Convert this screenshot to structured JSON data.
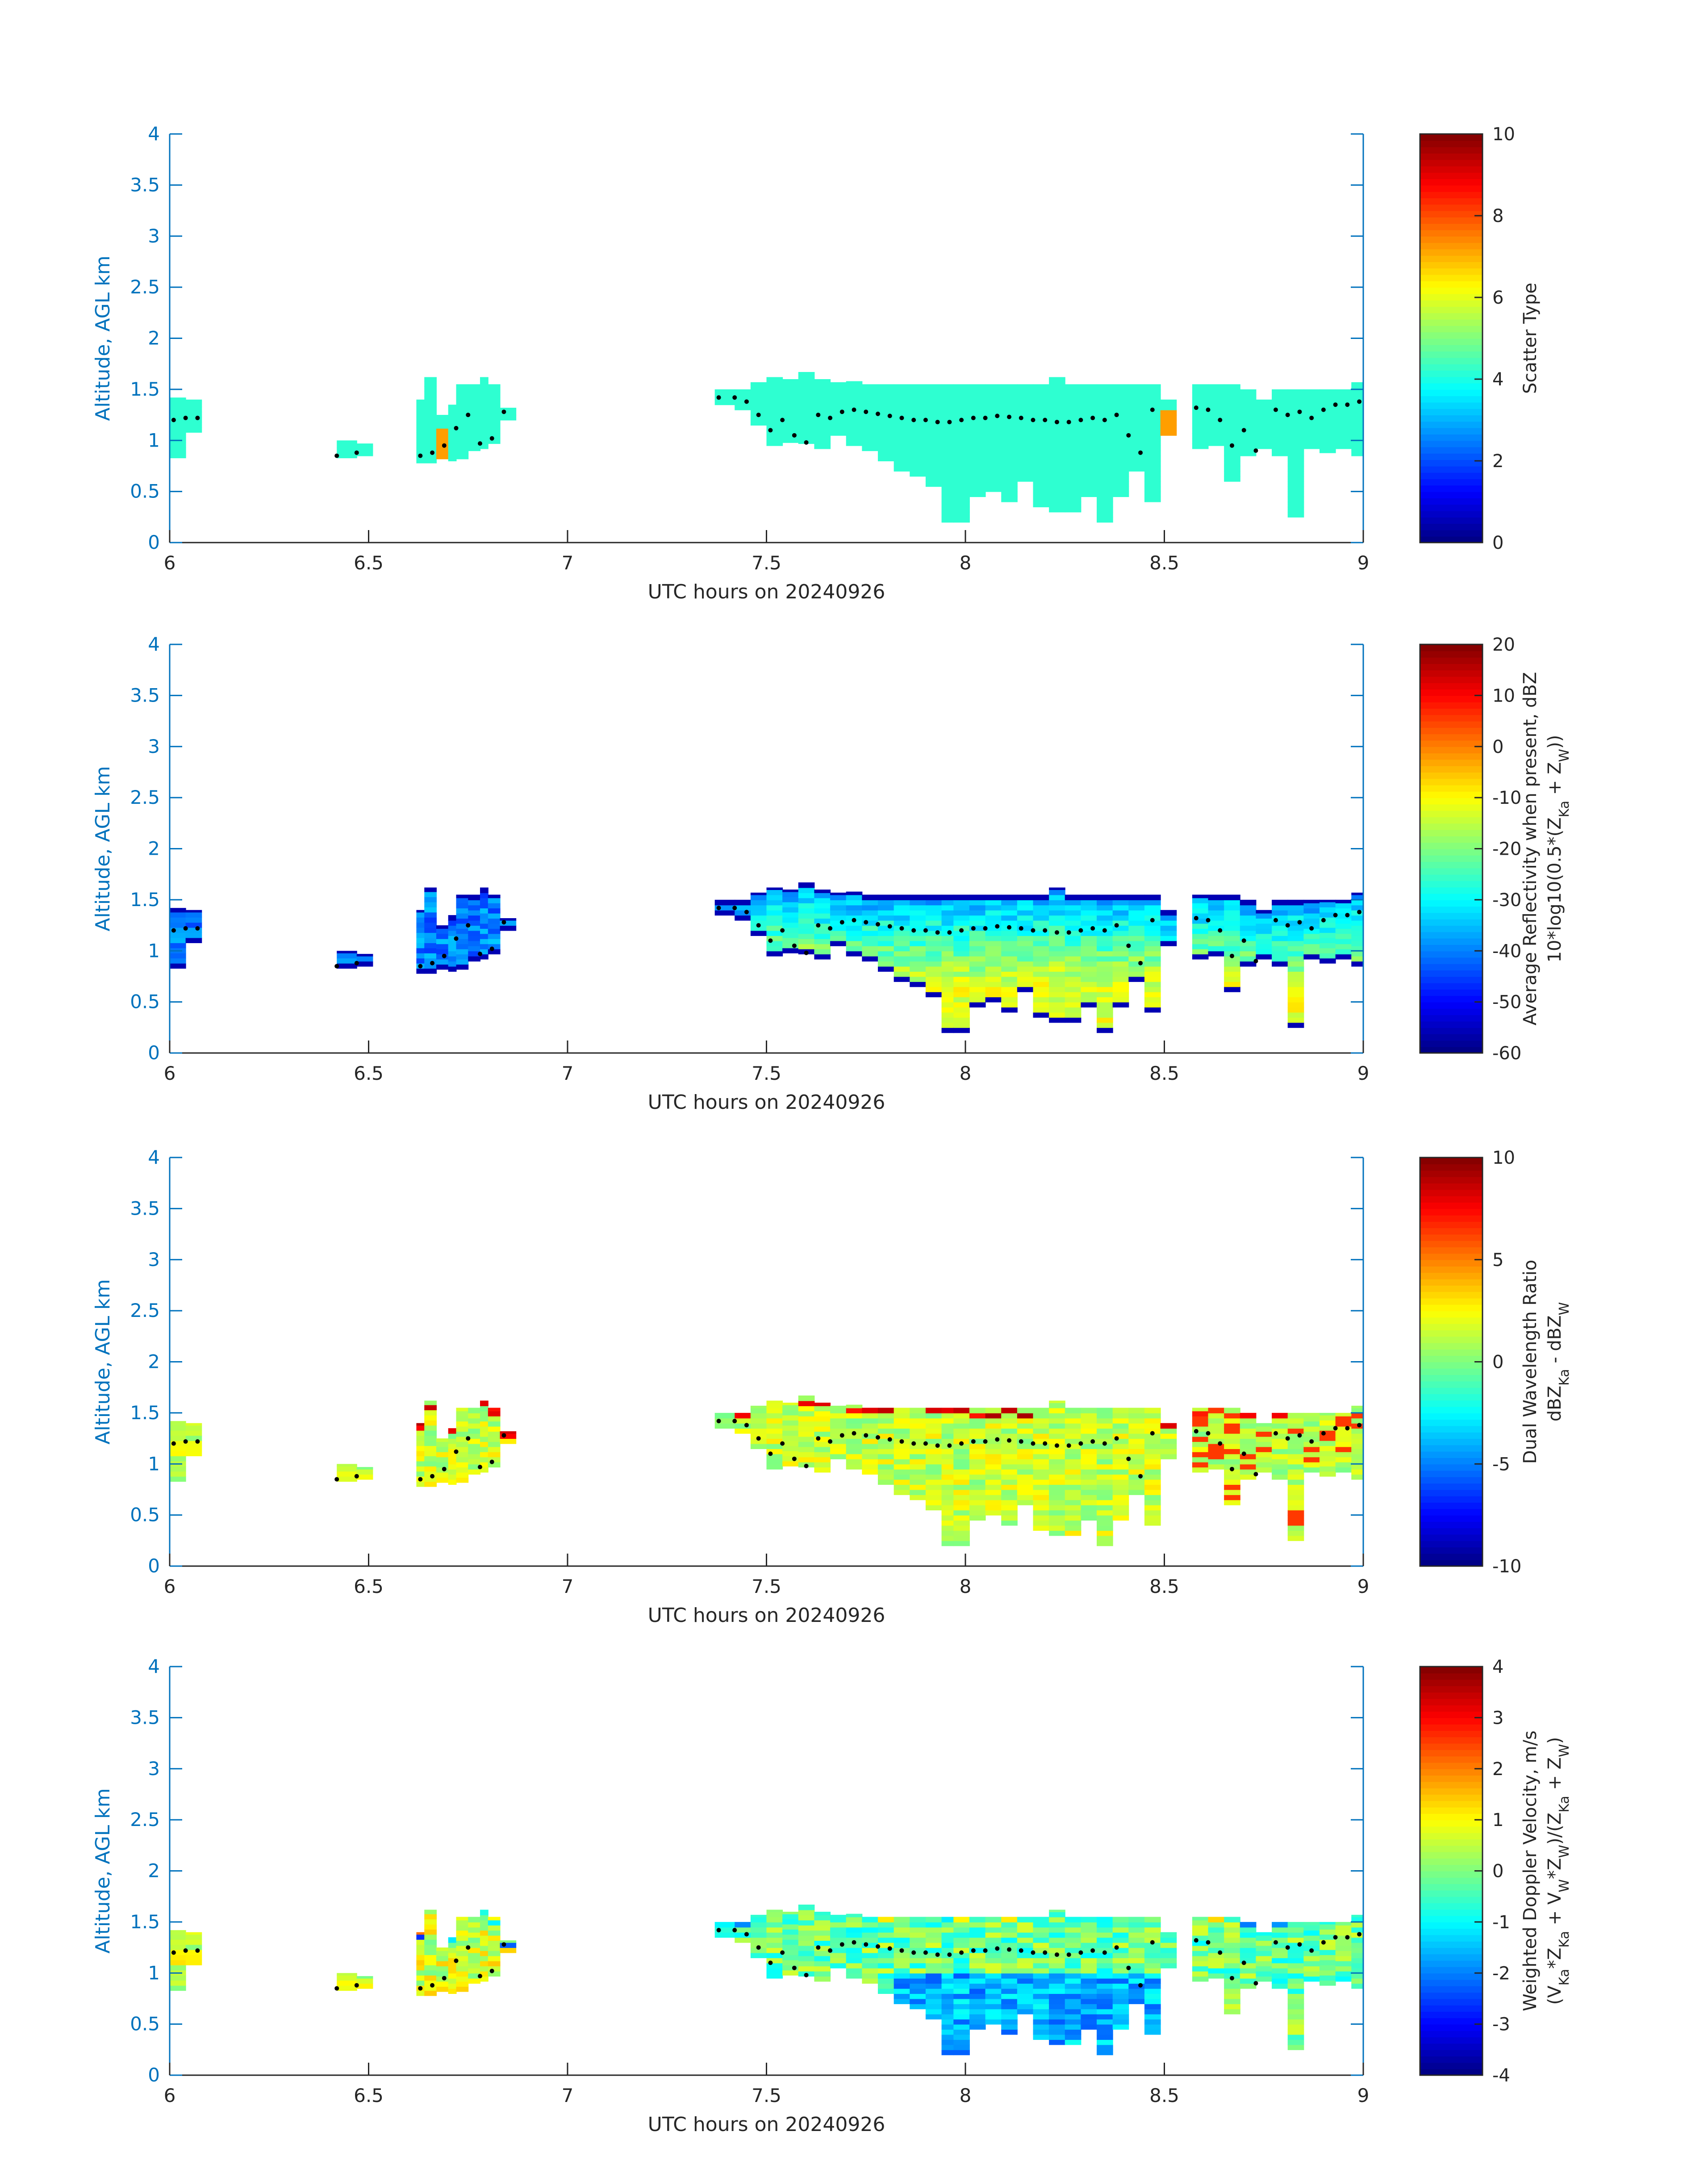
{
  "chart_data": [
    {
      "type": "heatmap",
      "variable": "scatter_type",
      "xlabel": "UTC hours on 20240926",
      "ylabel": "Altitude, AGL km",
      "xlim": [
        6,
        9
      ],
      "ylim": [
        0,
        4
      ],
      "xticks": [
        "6",
        "6.5",
        "7",
        "7.5",
        "8",
        "8.5",
        "9"
      ],
      "yticks": [
        "0",
        "0.5",
        "1",
        "1.5",
        "2",
        "2.5",
        "3",
        "3.5",
        "4"
      ],
      "colorbar": {
        "label_lines": [
          "Scatter Type"
        ],
        "range": [
          0,
          10
        ],
        "ticks": [
          "0",
          "2",
          "4",
          "6",
          "8",
          "10"
        ]
      }
    },
    {
      "type": "heatmap",
      "variable": "reflectivity",
      "xlabel": "UTC hours on 20240926",
      "ylabel": "Altitude, AGL km",
      "xlim": [
        6,
        9
      ],
      "ylim": [
        0,
        4
      ],
      "xticks": [
        "6",
        "6.5",
        "7",
        "7.5",
        "8",
        "8.5",
        "9"
      ],
      "yticks": [
        "0",
        "0.5",
        "1",
        "1.5",
        "2",
        "2.5",
        "3",
        "3.5",
        "4"
      ],
      "colorbar": {
        "label_lines": [
          "Average Reflectivity when present, dBZ",
          "10*log10(0.5*(Z_Ka + Z_W))"
        ],
        "range": [
          -60,
          20
        ],
        "ticks": [
          "-60",
          "-50",
          "-40",
          "-30",
          "-20",
          "-10",
          "0",
          "10",
          "20"
        ]
      }
    },
    {
      "type": "heatmap",
      "variable": "dwr",
      "xlabel": "UTC hours on 20240926",
      "ylabel": "Altitude, AGL km",
      "xlim": [
        6,
        9
      ],
      "ylim": [
        0,
        4
      ],
      "xticks": [
        "6",
        "6.5",
        "7",
        "7.5",
        "8",
        "8.5",
        "9"
      ],
      "yticks": [
        "0",
        "0.5",
        "1",
        "1.5",
        "2",
        "2.5",
        "3",
        "3.5",
        "4"
      ],
      "colorbar": {
        "label_lines": [
          "Dual Wavelength Ratio",
          "dBZ_Ka - dBZ_W"
        ],
        "range": [
          -10,
          10
        ],
        "ticks": [
          "-10",
          "-5",
          "0",
          "5",
          "10"
        ]
      }
    },
    {
      "type": "heatmap",
      "variable": "doppler",
      "xlabel": "UTC hours on 20240926",
      "ylabel": "Altitude, AGL km",
      "xlim": [
        6,
        9
      ],
      "ylim": [
        0,
        4
      ],
      "xticks": [
        "6",
        "6.5",
        "7",
        "7.5",
        "8",
        "8.5",
        "9"
      ],
      "yticks": [
        "0",
        "0.5",
        "1",
        "1.5",
        "2",
        "2.5",
        "3",
        "3.5",
        "4"
      ],
      "colorbar": {
        "label_lines": [
          "Weighted Doppler Velocity, m/s",
          "(V_Ka*Z_Ka + V_W*Z_W)/(Z_Ka + Z_W)"
        ],
        "range": [
          -4,
          4
        ],
        "ticks": [
          "-4",
          "-3",
          "-2",
          "-1",
          "0",
          "1",
          "2",
          "3",
          "4"
        ]
      }
    }
  ],
  "echo_columns": [
    {
      "t": 6.0,
      "top": 1.42,
      "bot": 0.83
    },
    {
      "t": 6.04,
      "top": 1.4,
      "bot": 1.08
    },
    {
      "t": 6.42,
      "top": 1.0,
      "bot": 0.83
    },
    {
      "t": 6.47,
      "top": 0.97,
      "bot": 0.85
    },
    {
      "t": 6.62,
      "top": 1.4,
      "bot": 0.78
    },
    {
      "t": 6.64,
      "top": 1.62,
      "bot": 0.78
    },
    {
      "t": 6.67,
      "top": 1.25,
      "bot": 0.82
    },
    {
      "t": 6.7,
      "top": 1.35,
      "bot": 0.8
    },
    {
      "t": 6.72,
      "top": 1.55,
      "bot": 0.82
    },
    {
      "t": 6.75,
      "top": 1.55,
      "bot": 0.9
    },
    {
      "t": 6.78,
      "top": 1.62,
      "bot": 0.92
    },
    {
      "t": 6.8,
      "top": 1.55,
      "bot": 0.97
    },
    {
      "t": 6.83,
      "top": 1.32,
      "bot": 1.2
    },
    {
      "t": 7.37,
      "top": 1.5,
      "bot": 1.35
    },
    {
      "t": 7.42,
      "top": 1.5,
      "bot": 1.3
    },
    {
      "t": 7.46,
      "top": 1.57,
      "bot": 1.15
    },
    {
      "t": 7.5,
      "top": 1.62,
      "bot": 0.95
    },
    {
      "t": 7.54,
      "top": 1.6,
      "bot": 0.98
    },
    {
      "t": 7.58,
      "top": 1.67,
      "bot": 0.97
    },
    {
      "t": 7.62,
      "top": 1.6,
      "bot": 0.92
    },
    {
      "t": 7.66,
      "top": 1.57,
      "bot": 1.05
    },
    {
      "t": 7.7,
      "top": 1.58,
      "bot": 0.95
    },
    {
      "t": 7.74,
      "top": 1.55,
      "bot": 0.9
    },
    {
      "t": 7.78,
      "top": 1.55,
      "bot": 0.8
    },
    {
      "t": 7.82,
      "top": 1.55,
      "bot": 0.7
    },
    {
      "t": 7.86,
      "top": 1.55,
      "bot": 0.65
    },
    {
      "t": 7.9,
      "top": 1.55,
      "bot": 0.55
    },
    {
      "t": 7.94,
      "top": 1.55,
      "bot": 0.2
    },
    {
      "t": 7.97,
      "top": 1.55,
      "bot": 0.2
    },
    {
      "t": 8.01,
      "top": 1.55,
      "bot": 0.45
    },
    {
      "t": 8.05,
      "top": 1.55,
      "bot": 0.5
    },
    {
      "t": 8.09,
      "top": 1.55,
      "bot": 0.4
    },
    {
      "t": 8.13,
      "top": 1.55,
      "bot": 0.6
    },
    {
      "t": 8.17,
      "top": 1.55,
      "bot": 0.35
    },
    {
      "t": 8.21,
      "top": 1.62,
      "bot": 0.3
    },
    {
      "t": 8.25,
      "top": 1.55,
      "bot": 0.3
    },
    {
      "t": 8.29,
      "top": 1.55,
      "bot": 0.45
    },
    {
      "t": 8.33,
      "top": 1.55,
      "bot": 0.2
    },
    {
      "t": 8.37,
      "top": 1.55,
      "bot": 0.45
    },
    {
      "t": 8.41,
      "top": 1.55,
      "bot": 0.7
    },
    {
      "t": 8.45,
      "top": 1.55,
      "bot": 0.4
    },
    {
      "t": 8.49,
      "top": 1.4,
      "bot": 1.05
    },
    {
      "t": 8.57,
      "top": 1.55,
      "bot": 0.92
    },
    {
      "t": 8.61,
      "top": 1.55,
      "bot": 0.95
    },
    {
      "t": 8.65,
      "top": 1.55,
      "bot": 0.6
    },
    {
      "t": 8.69,
      "top": 1.5,
      "bot": 0.85
    },
    {
      "t": 8.73,
      "top": 1.4,
      "bot": 0.92
    },
    {
      "t": 8.77,
      "top": 1.5,
      "bot": 0.85
    },
    {
      "t": 8.81,
      "top": 1.5,
      "bot": 0.25
    },
    {
      "t": 8.85,
      "top": 1.5,
      "bot": 0.92
    },
    {
      "t": 8.89,
      "top": 1.5,
      "bot": 0.88
    },
    {
      "t": 8.93,
      "top": 1.5,
      "bot": 0.92
    },
    {
      "t": 8.97,
      "top": 1.57,
      "bot": 0.85
    },
    {
      "t": 9.0,
      "top": 1.57,
      "bot": 0.7
    }
  ],
  "cloud_top_dots": [
    {
      "t": 6.01,
      "h": 1.2
    },
    {
      "t": 6.04,
      "h": 1.22
    },
    {
      "t": 6.07,
      "h": 1.22
    },
    {
      "t": 6.42,
      "h": 0.85
    },
    {
      "t": 6.47,
      "h": 0.88
    },
    {
      "t": 6.63,
      "h": 0.85
    },
    {
      "t": 6.66,
      "h": 0.88
    },
    {
      "t": 6.69,
      "h": 0.95
    },
    {
      "t": 6.72,
      "h": 1.12
    },
    {
      "t": 6.75,
      "h": 1.25
    },
    {
      "t": 6.78,
      "h": 0.97
    },
    {
      "t": 6.81,
      "h": 1.02
    },
    {
      "t": 6.84,
      "h": 1.28
    },
    {
      "t": 7.38,
      "h": 1.42
    },
    {
      "t": 7.42,
      "h": 1.42
    },
    {
      "t": 7.45,
      "h": 1.38
    },
    {
      "t": 7.48,
      "h": 1.25
    },
    {
      "t": 7.51,
      "h": 1.1
    },
    {
      "t": 7.54,
      "h": 1.2
    },
    {
      "t": 7.57,
      "h": 1.05
    },
    {
      "t": 7.6,
      "h": 0.98
    },
    {
      "t": 7.63,
      "h": 1.25
    },
    {
      "t": 7.66,
      "h": 1.22
    },
    {
      "t": 7.69,
      "h": 1.28
    },
    {
      "t": 7.72,
      "h": 1.3
    },
    {
      "t": 7.75,
      "h": 1.28
    },
    {
      "t": 7.78,
      "h": 1.26
    },
    {
      "t": 7.81,
      "h": 1.24
    },
    {
      "t": 7.84,
      "h": 1.22
    },
    {
      "t": 7.87,
      "h": 1.2
    },
    {
      "t": 7.9,
      "h": 1.2
    },
    {
      "t": 7.93,
      "h": 1.18
    },
    {
      "t": 7.96,
      "h": 1.18
    },
    {
      "t": 7.99,
      "h": 1.2
    },
    {
      "t": 8.02,
      "h": 1.22
    },
    {
      "t": 8.05,
      "h": 1.22
    },
    {
      "t": 8.08,
      "h": 1.24
    },
    {
      "t": 8.11,
      "h": 1.23
    },
    {
      "t": 8.14,
      "h": 1.22
    },
    {
      "t": 8.17,
      "h": 1.2
    },
    {
      "t": 8.2,
      "h": 1.2
    },
    {
      "t": 8.23,
      "h": 1.18
    },
    {
      "t": 8.26,
      "h": 1.18
    },
    {
      "t": 8.29,
      "h": 1.2
    },
    {
      "t": 8.32,
      "h": 1.22
    },
    {
      "t": 8.35,
      "h": 1.2
    },
    {
      "t": 8.38,
      "h": 1.25
    },
    {
      "t": 8.41,
      "h": 1.05
    },
    {
      "t": 8.44,
      "h": 0.88
    },
    {
      "t": 8.47,
      "h": 1.3
    },
    {
      "t": 8.58,
      "h": 1.32
    },
    {
      "t": 8.61,
      "h": 1.3
    },
    {
      "t": 8.64,
      "h": 1.2
    },
    {
      "t": 8.67,
      "h": 0.95
    },
    {
      "t": 8.7,
      "h": 1.1
    },
    {
      "t": 8.73,
      "h": 0.9
    },
    {
      "t": 8.78,
      "h": 1.3
    },
    {
      "t": 8.81,
      "h": 1.25
    },
    {
      "t": 8.84,
      "h": 1.28
    },
    {
      "t": 8.87,
      "h": 1.22
    },
    {
      "t": 8.9,
      "h": 1.3
    },
    {
      "t": 8.93,
      "h": 1.35
    },
    {
      "t": 8.96,
      "h": 1.35
    },
    {
      "t": 8.99,
      "h": 1.38
    }
  ]
}
